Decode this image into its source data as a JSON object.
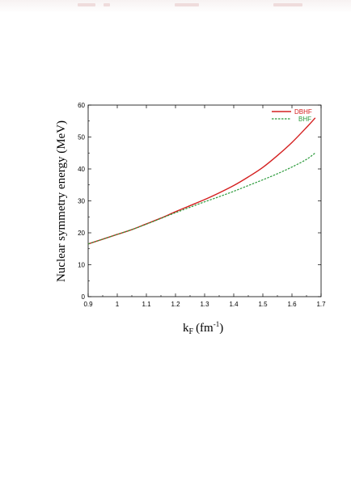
{
  "chart_data": {
    "type": "line",
    "title": "",
    "xlabel": "k",
    "xlabel_sub": "F",
    "xlabel_unit": "(fm",
    "xlabel_sup": "-1",
    "xlabel_close": ")",
    "ylabel": "Nuclear symmetry energy (MeV)",
    "xlim": [
      0.9,
      1.7
    ],
    "ylim": [
      0,
      60
    ],
    "xticks": [
      0.9,
      1,
      1.1,
      1.2,
      1.3,
      1.4,
      1.5,
      1.6,
      1.7
    ],
    "xtick_labels": [
      "0.9",
      "1",
      "1.1",
      "1.2",
      "1.3",
      "1.4",
      "1.5",
      "1.6",
      "1.7"
    ],
    "yticks": [
      0,
      10,
      20,
      30,
      40,
      50,
      60
    ],
    "ytick_labels": [
      "0",
      "10",
      "20",
      "30",
      "40",
      "50",
      "60"
    ],
    "grid": false,
    "legend_position": "top-right",
    "series": [
      {
        "name": "DBHF",
        "color": "#d42020",
        "style": "solid",
        "x": [
          0.9,
          0.95,
          1.0,
          1.05,
          1.1,
          1.15,
          1.2,
          1.25,
          1.3,
          1.35,
          1.4,
          1.45,
          1.5,
          1.55,
          1.6,
          1.65,
          1.68
        ],
        "y": [
          16.5,
          18.0,
          19.5,
          21.0,
          22.8,
          24.6,
          26.6,
          28.5,
          30.4,
          32.5,
          34.8,
          37.5,
          40.5,
          44.2,
          48.3,
          53.0,
          56.0
        ]
      },
      {
        "name": "BHF",
        "color": "#2a9a3a",
        "style": "dashed",
        "x": [
          0.9,
          0.95,
          1.0,
          1.05,
          1.1,
          1.15,
          1.2,
          1.25,
          1.3,
          1.35,
          1.4,
          1.45,
          1.5,
          1.55,
          1.6,
          1.65,
          1.68
        ],
        "y": [
          16.5,
          18.0,
          19.5,
          21.0,
          22.7,
          24.5,
          26.3,
          28.0,
          29.7,
          31.3,
          33.0,
          34.8,
          36.6,
          38.5,
          40.6,
          43.0,
          45.0
        ]
      }
    ]
  }
}
